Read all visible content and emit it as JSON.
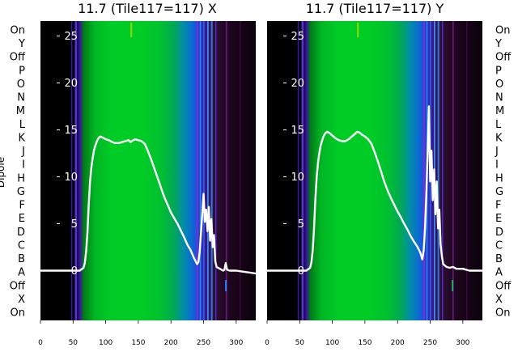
{
  "chart_data": [
    {
      "type": "heatmap",
      "title": "11.7 (Tile117=117) X",
      "xlim": [
        0,
        330
      ],
      "xticks": [
        0,
        50,
        100,
        150,
        200,
        250,
        300
      ],
      "ylabel": "Dipole",
      "rows": [
        "On",
        "Y",
        "Off",
        "P",
        "O",
        "N",
        "M",
        "L",
        "K",
        "J",
        "I",
        "H",
        "G",
        "F",
        "E",
        "D",
        "C",
        "B",
        "A",
        "Off",
        "X",
        "On"
      ],
      "overlay_yticks": [
        0,
        5,
        10,
        15,
        20,
        25
      ],
      "overlay_ylim": [
        -5.3,
        26.6
      ],
      "overlay_line": {
        "x": [
          0,
          60,
          66,
          68,
          70,
          72,
          74,
          76,
          78,
          80,
          82,
          84,
          86,
          88,
          90,
          92,
          95,
          100,
          105,
          110,
          115,
          120,
          125,
          130,
          135,
          138,
          142,
          145,
          150,
          155,
          160,
          165,
          170,
          175,
          180,
          185,
          190,
          195,
          200,
          205,
          210,
          215,
          220,
          225,
          230,
          235,
          240,
          242,
          244,
          246,
          248,
          250,
          252,
          254,
          256,
          258,
          260,
          262,
          264,
          266,
          268,
          270,
          275,
          280,
          282,
          284,
          286,
          290,
          300,
          310,
          320,
          330
        ],
        "y": [
          0,
          0,
          0.3,
          0.8,
          2,
          4,
          7,
          9.5,
          11,
          12,
          12.8,
          13.3,
          13.7,
          14,
          14.2,
          14.3,
          14.2,
          14,
          13.9,
          13.7,
          13.6,
          13.6,
          13.7,
          13.8,
          13.9,
          13.7,
          13.9,
          14,
          13.9,
          13.8,
          13.5,
          12.7,
          11.8,
          10.8,
          9.8,
          8.8,
          7.8,
          7,
          6.2,
          5.6,
          5,
          4.3,
          3.6,
          2.8,
          2.2,
          1.4,
          0.7,
          0.9,
          2,
          4,
          6,
          8.2,
          5.2,
          6.5,
          4.2,
          6.8,
          3.2,
          5.5,
          2.5,
          3.8,
          1,
          0.4,
          0.2,
          0,
          0.1,
          0.8,
          0.1,
          0,
          0,
          -0.1,
          -0.2,
          -0.3
        ]
      }
    },
    {
      "type": "heatmap",
      "title": "11.7 (Tile117=117) Y",
      "xlim": [
        0,
        330
      ],
      "xticks": [
        0,
        50,
        100,
        150,
        200,
        250,
        300
      ],
      "rows": [
        "On",
        "Y",
        "Off",
        "P",
        "O",
        "N",
        "M",
        "L",
        "K",
        "J",
        "I",
        "H",
        "G",
        "F",
        "E",
        "D",
        "C",
        "B",
        "A",
        "Off",
        "X",
        "On"
      ],
      "overlay_yticks": [
        0,
        5,
        10,
        15,
        20,
        25
      ],
      "overlay_ylim": [
        -5.3,
        26.6
      ],
      "overlay_line": {
        "x": [
          0,
          60,
          66,
          68,
          70,
          72,
          74,
          76,
          78,
          80,
          82,
          84,
          86,
          88,
          90,
          92,
          95,
          100,
          105,
          110,
          115,
          120,
          125,
          130,
          135,
          138,
          142,
          145,
          150,
          155,
          160,
          165,
          170,
          175,
          180,
          185,
          190,
          195,
          200,
          205,
          210,
          215,
          220,
          225,
          230,
          235,
          238,
          240,
          242,
          244,
          246,
          248,
          250,
          252,
          254,
          256,
          258,
          260,
          262,
          264,
          266,
          268,
          270,
          275,
          280,
          285,
          290,
          300,
          310,
          320,
          330
        ],
        "y": [
          0,
          0,
          0.3,
          0.9,
          2.2,
          4.5,
          7.5,
          10,
          11.5,
          12.5,
          13.3,
          13.8,
          14.2,
          14.5,
          14.7,
          14.8,
          14.7,
          14.4,
          14.1,
          13.9,
          13.8,
          13.8,
          14,
          14.3,
          14.6,
          14.8,
          14.7,
          14.5,
          14.3,
          14,
          13.5,
          12.6,
          11.6,
          10.5,
          9.4,
          8.5,
          7.7,
          7,
          6.3,
          5.7,
          5,
          4.4,
          3.7,
          3.1,
          2.6,
          1.9,
          1.2,
          2.2,
          4.5,
          8,
          12.5,
          17.5,
          9.5,
          12.8,
          7.5,
          10.8,
          6,
          9.5,
          4.5,
          6.5,
          2.8,
          1.5,
          0.7,
          0.4,
          0.3,
          0.4,
          0.2,
          0.2,
          0,
          0,
          0
        ]
      }
    }
  ]
}
